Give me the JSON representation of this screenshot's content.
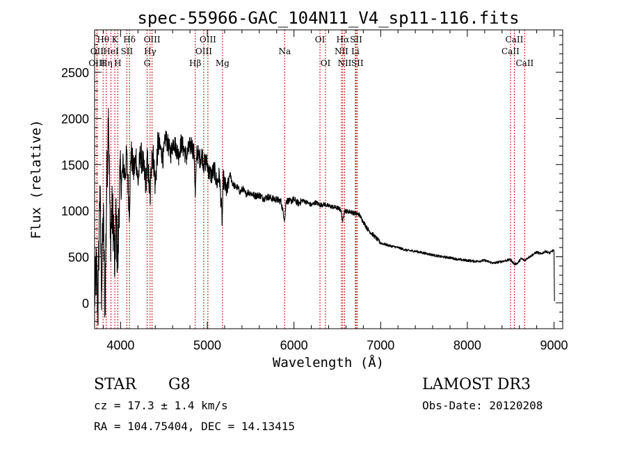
{
  "chart_data": {
    "type": "line",
    "title": "spec-55966-GAC_104N11_V4_sp11-116.fits",
    "xlabel": "Wavelength (Å)",
    "ylabel": "Flux (relative)",
    "xlim": [
      3700,
      9100
    ],
    "ylim": [
      -280,
      2960
    ],
    "x_ticks": [
      4000,
      5000,
      6000,
      7000,
      8000,
      9000
    ],
    "y_ticks": [
      0,
      500,
      1000,
      1500,
      2000,
      2500
    ],
    "series": [
      {
        "name": "flux",
        "x": [
          3700,
          3720,
          3740,
          3760,
          3780,
          3800,
          3820,
          3840,
          3860,
          3880,
          3900,
          3920,
          3933,
          3945,
          3968,
          3990,
          4010,
          4030,
          4050,
          4070,
          4101,
          4120,
          4150,
          4180,
          4200,
          4230,
          4260,
          4290,
          4310,
          4340,
          4360,
          4380,
          4400,
          4430,
          4460,
          4490,
          4520,
          4550,
          4580,
          4610,
          4640,
          4670,
          4700,
          4730,
          4760,
          4790,
          4820,
          4850,
          4861,
          4880,
          4910,
          4940,
          4960,
          4990,
          5020,
          5050,
          5080,
          5110,
          5140,
          5172,
          5185,
          5200,
          5230,
          5260,
          5290,
          5320,
          5350,
          5380,
          5410,
          5440,
          5470,
          5500,
          5550,
          5600,
          5650,
          5700,
          5750,
          5800,
          5850,
          5893,
          5910,
          5950,
          6000,
          6050,
          6100,
          6150,
          6200,
          6250,
          6300,
          6350,
          6400,
          6450,
          6500,
          6540,
          6563,
          6580,
          6620,
          6650,
          6700,
          6750,
          6800,
          6850,
          6900,
          6950,
          7000,
          7100,
          7200,
          7300,
          7400,
          7500,
          7600,
          7700,
          7800,
          7900,
          8000,
          8100,
          8200,
          8300,
          8400,
          8498,
          8542,
          8580,
          8620,
          8662,
          8700,
          8750,
          8800,
          8850,
          8900,
          8950,
          8990,
          9000,
          9005
        ],
        "values": [
          50,
          380,
          -50,
          1270,
          150,
          950,
          -20,
          1250,
          2110,
          700,
          980,
          850,
          300,
          950,
          420,
          1350,
          1280,
          1500,
          1380,
          1600,
          1000,
          1640,
          1420,
          1580,
          1300,
          1620,
          1480,
          1320,
          1550,
          1100,
          1650,
          1560,
          1280,
          1720,
          1670,
          1560,
          1800,
          1700,
          1620,
          1760,
          1680,
          1600,
          1740,
          1660,
          1580,
          1680,
          1720,
          1600,
          1150,
          1650,
          1560,
          1610,
          1500,
          1540,
          1420,
          1380,
          1450,
          1300,
          1380,
          880,
          1350,
          1280,
          1200,
          1400,
          1300,
          1260,
          1250,
          1200,
          1240,
          1180,
          1200,
          1190,
          1160,
          1170,
          1130,
          1150,
          1130,
          1120,
          1100,
          900,
          1110,
          1100,
          1120,
          1080,
          1110,
          1090,
          1060,
          1090,
          1060,
          1070,
          1050,
          1040,
          1030,
          1010,
          880,
          1000,
          990,
          990,
          970,
          960,
          880,
          800,
          750,
          700,
          650,
          620,
          600,
          570,
          560,
          540,
          520,
          500,
          490,
          470,
          460,
          450,
          460,
          430,
          450,
          470,
          420,
          430,
          480,
          460,
          490,
          520,
          550,
          530,
          560,
          540,
          570,
          560,
          20
        ]
      }
    ],
    "spectral_lines": [
      {
        "name": "Hθ",
        "wavelength": 3798,
        "row": 1
      },
      {
        "name": "OII",
        "wavelength": 3727,
        "row": 2
      },
      {
        "name": "OIII",
        "wavelength": 3727,
        "row": 3
      },
      {
        "name": "HeI",
        "wavelength": 3889,
        "row": 2
      },
      {
        "name": "Hη",
        "wavelength": 3835,
        "row": 3
      },
      {
        "name": "K",
        "wavelength": 3934,
        "row": 1
      },
      {
        "name": "SII",
        "wavelength": 4072,
        "row": 2
      },
      {
        "name": "H",
        "wavelength": 3968,
        "row": 3
      },
      {
        "name": "Hδ",
        "wavelength": 4102,
        "row": 1
      },
      {
        "name": "OIII",
        "wavelength": 4363,
        "row": 1
      },
      {
        "name": "Hγ",
        "wavelength": 4340,
        "row": 2
      },
      {
        "name": "G",
        "wavelength": 4305,
        "row": 3
      },
      {
        "name": "Hβ",
        "wavelength": 4861,
        "row": 3
      },
      {
        "name": "OIII",
        "wavelength": 5007,
        "row": 1
      },
      {
        "name": "OIII",
        "wavelength": 4959,
        "row": 2
      },
      {
        "name": "Mg",
        "wavelength": 5175,
        "row": 3
      },
      {
        "name": "Na",
        "wavelength": 5893,
        "row": 2
      },
      {
        "name": "OI",
        "wavelength": 6300,
        "row": 1
      },
      {
        "name": "OI",
        "wavelength": 6364,
        "row": 3
      },
      {
        "name": "Hα",
        "wavelength": 6563,
        "row": 1
      },
      {
        "name": "NII",
        "wavelength": 6548,
        "row": 2
      },
      {
        "name": "NII",
        "wavelength": 6584,
        "row": 3
      },
      {
        "name": "SII",
        "wavelength": 6717,
        "row": 1
      },
      {
        "name": "Li",
        "wavelength": 6708,
        "row": 2
      },
      {
        "name": "SII",
        "wavelength": 6731,
        "row": 3
      },
      {
        "name": "CaII",
        "wavelength": 8542,
        "row": 1
      },
      {
        "name": "CaII",
        "wavelength": 8498,
        "row": 2
      },
      {
        "name": "CaII",
        "wavelength": 8662,
        "row": 3
      }
    ],
    "line_color": "#000000",
    "marker_color": "#c00000"
  },
  "info": {
    "object_class": "STAR",
    "subclass": "G8",
    "survey": "LAMOST DR3",
    "redshift": "cz = 17.3 ± 1.4 km/s",
    "obs_date": "Obs-Date: 20120208",
    "coords": "RA = 104.75404, DEC =  14.13415"
  }
}
